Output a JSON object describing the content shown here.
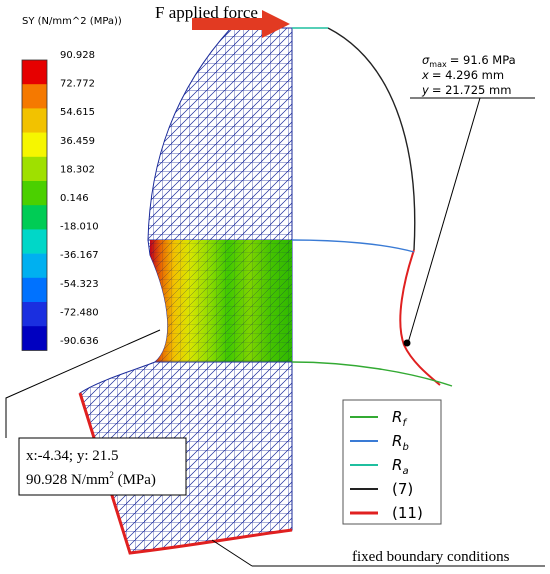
{
  "legend_colorbar": {
    "title": "SY (N/mm^2 (MPa))",
    "levels": [
      "90.928",
      "72.772",
      "54.615",
      "36.459",
      "18.302",
      "0.146",
      "-18.010",
      "-36.167",
      "-54.323",
      "-72.480",
      "-90.636"
    ],
    "colors": [
      "#e60000",
      "#f57900",
      "#f2c200",
      "#f6f600",
      "#9fe000",
      "#4bd000",
      "#00cc55",
      "#00d7c8",
      "#00b0f0",
      "#0072ff",
      "#1a2fe0",
      "#0000c0"
    ]
  },
  "force": {
    "label": "F applied force",
    "color": "#e23a22"
  },
  "max_stress": {
    "sigma_text": "= 91.6 MPa",
    "x_text": "= 4.296 mm",
    "y_text": "= 21.725 mm"
  },
  "probe_box": {
    "line1": "x:-4.34; y: 21.5",
    "line2": "90.928 N/mm",
    "line2_unit": " (MPa)"
  },
  "curve_legend": {
    "items": [
      {
        "label": "R",
        "sub": "f",
        "italic": true,
        "color": "#33aa33"
      },
      {
        "label": "R",
        "sub": "b",
        "italic": true,
        "color": "#3a7bd5"
      },
      {
        "label": "R",
        "sub": "a",
        "italic": true,
        "color": "#1fbf9f"
      },
      {
        "label": "(7)",
        "sub": "",
        "italic": false,
        "color": "#222222"
      },
      {
        "label": "(11)",
        "sub": "",
        "italic": false,
        "color": "#e02020"
      }
    ]
  },
  "fixed_boundary_label": "fixed boundary conditions",
  "colors": {
    "mesh": "#1a2a9a",
    "mesh_fill": "#ffffff"
  }
}
